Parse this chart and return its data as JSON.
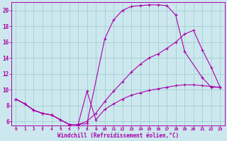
{
  "bg_color": "#cce8ee",
  "line_color": "#aa00aa",
  "grid_color": "#99cccc",
  "xlabel": "Windchill (Refroidissement éolien,°C)",
  "xlim": [
    -0.5,
    23.5
  ],
  "ylim": [
    5.5,
    21.0
  ],
  "xticks": [
    0,
    1,
    2,
    3,
    4,
    5,
    6,
    7,
    8,
    9,
    10,
    11,
    12,
    13,
    14,
    15,
    16,
    17,
    18,
    19,
    20,
    21,
    22,
    23
  ],
  "yticks": [
    6,
    8,
    10,
    12,
    14,
    16,
    18,
    20
  ],
  "curve1_x": [
    0,
    1,
    2,
    3,
    4,
    5,
    6,
    7,
    8,
    10,
    11,
    12,
    13,
    14,
    15,
    16,
    17,
    18,
    19,
    21,
    22,
    23
  ],
  "curve1_y": [
    8.8,
    8.2,
    7.4,
    7.0,
    6.8,
    6.2,
    5.6,
    5.6,
    5.7,
    16.4,
    18.8,
    20.0,
    20.5,
    20.6,
    20.7,
    20.7,
    20.6,
    19.4,
    14.8,
    11.5,
    10.3,
    10.3
  ],
  "curve2_x": [
    0,
    1,
    2,
    3,
    4,
    5,
    6,
    7,
    8,
    9,
    10,
    11,
    12,
    13,
    14,
    15,
    16,
    17,
    18,
    19,
    20,
    21,
    22,
    23
  ],
  "curve2_y": [
    8.8,
    8.2,
    7.4,
    7.0,
    6.8,
    6.2,
    5.6,
    5.6,
    6.0,
    7.0,
    8.5,
    9.8,
    11.0,
    12.2,
    13.2,
    14.0,
    14.5,
    15.2,
    16.0,
    17.0,
    17.5,
    15.0,
    12.8,
    10.3
  ],
  "curve3_x": [
    0,
    1,
    2,
    3,
    4,
    5,
    6,
    7,
    8,
    9,
    10,
    11,
    12,
    13,
    14,
    15,
    16,
    17,
    18,
    19,
    20,
    21,
    22,
    23
  ],
  "curve3_y": [
    8.8,
    8.2,
    7.4,
    7.0,
    6.8,
    6.2,
    5.6,
    5.6,
    9.8,
    6.2,
    7.5,
    8.2,
    8.8,
    9.3,
    9.6,
    9.9,
    10.1,
    10.3,
    10.5,
    10.6,
    10.6,
    10.5,
    10.4,
    10.3
  ]
}
